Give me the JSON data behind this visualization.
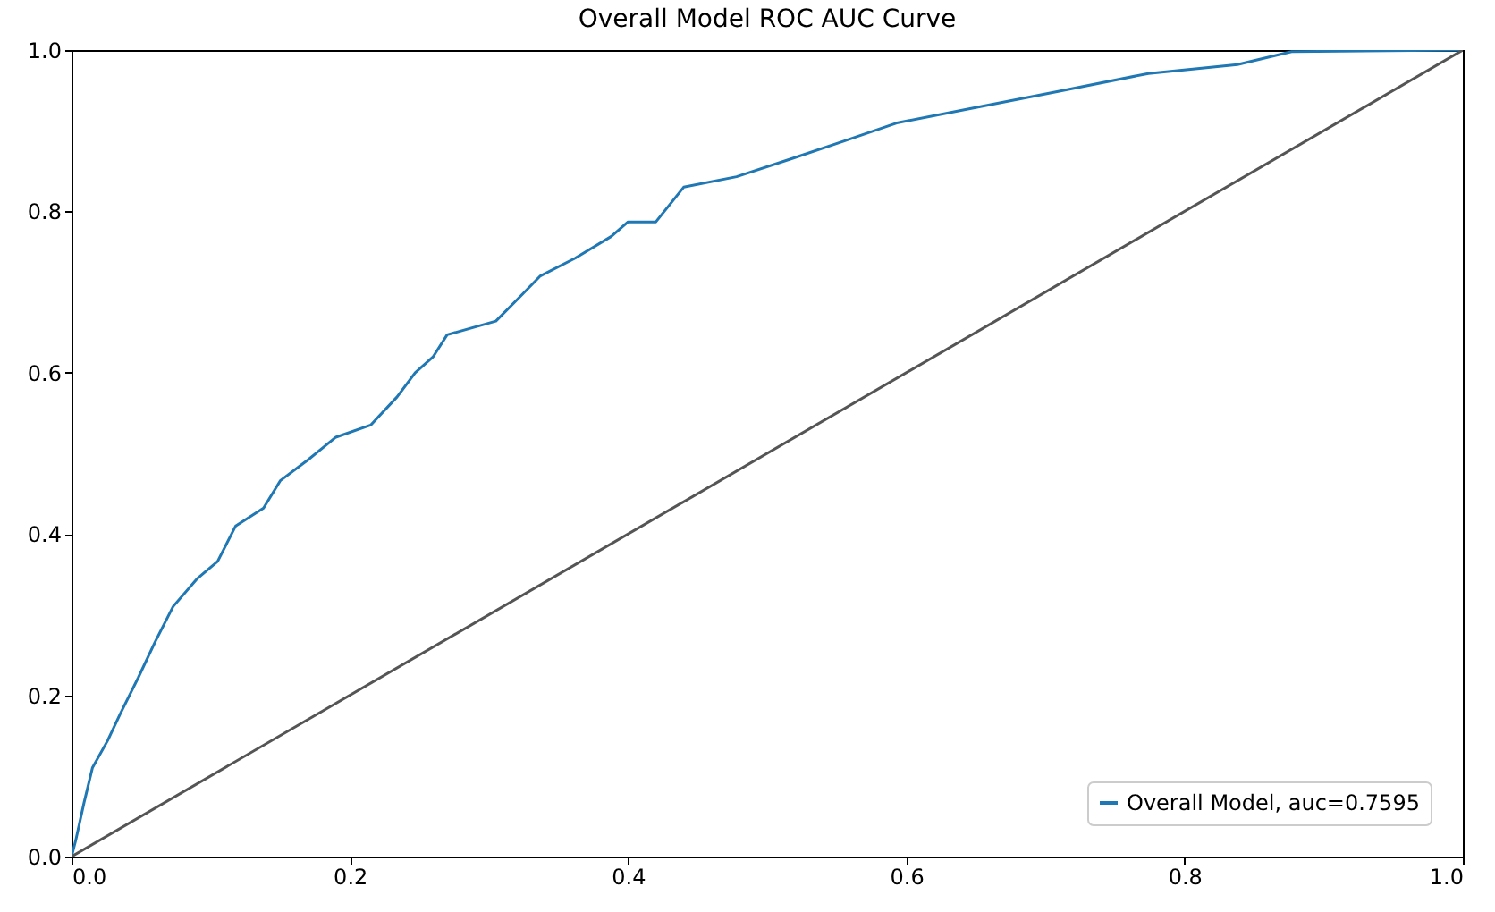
{
  "chart_data": {
    "type": "line",
    "title": "Overall Model ROC AUC Curve",
    "xlim": [
      0,
      1
    ],
    "ylim": [
      0,
      1
    ],
    "xticks": [
      {
        "value": 0,
        "label": "0.0"
      },
      0.2,
      0.4,
      0.6,
      0.8,
      {
        "value": 1,
        "label": "1.0"
      }
    ],
    "yticks": [
      {
        "value": 0,
        "label": "0.0"
      },
      0.2,
      0.4,
      0.6,
      0.8,
      {
        "value": 1,
        "label": "1.0"
      }
    ],
    "grid": false,
    "legend": "bottom right",
    "series": [
      {
        "name": "Overall Model, auc=0.7595",
        "color": "#1f77b4",
        "x": [
          0,
          0.003,
          0.009,
          0.015,
          0.026,
          0.035,
          0.048,
          0.06,
          0.073,
          0.09,
          0.105,
          0.118,
          0.138,
          0.15,
          0.17,
          0.19,
          0.215,
          0.234,
          0.247,
          0.26,
          0.27,
          0.305,
          0.324,
          0.337,
          0.362,
          0.388,
          0.4,
          0.42,
          0.44,
          0.478,
          0.517,
          0.555,
          0.594,
          0.645,
          0.71,
          0.774,
          0.838,
          0.877,
          1
        ],
        "values": [
          0,
          0.02,
          0.067,
          0.11,
          0.144,
          0.177,
          0.222,
          0.266,
          0.31,
          0.344,
          0.366,
          0.41,
          0.432,
          0.466,
          0.492,
          0.52,
          0.535,
          0.57,
          0.6,
          0.62,
          0.647,
          0.664,
          0.697,
          0.72,
          0.742,
          0.769,
          0.787,
          0.787,
          0.83,
          0.843,
          0.865,
          0.887,
          0.91,
          0.927,
          0.949,
          0.971,
          0.982,
          0.998,
          1
        ]
      },
      {
        "color": "#555555",
        "x": [
          0,
          1
        ],
        "values": [
          0,
          1
        ]
      }
    ]
  }
}
